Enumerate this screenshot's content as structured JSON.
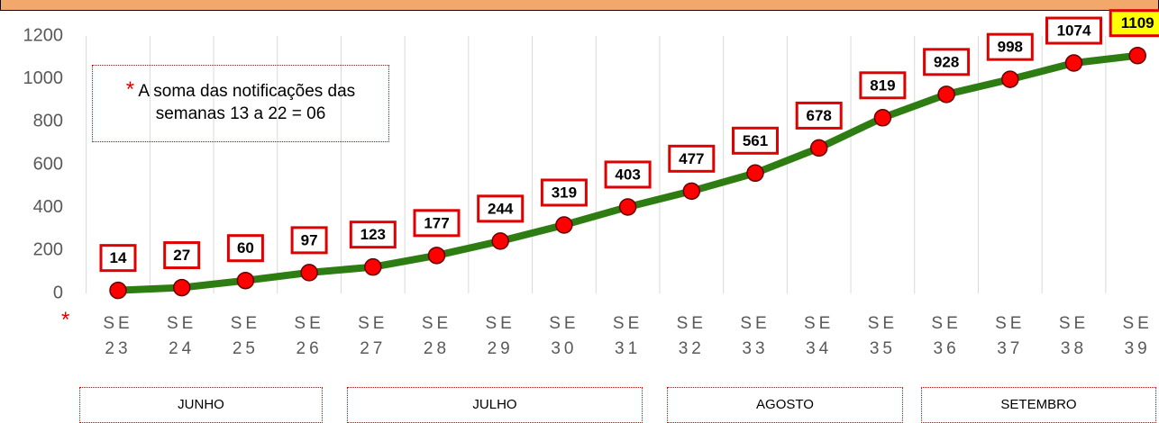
{
  "chart_data": {
    "type": "line",
    "categories": [
      "SE\n23",
      "SE\n24",
      "SE\n25",
      "SE\n26",
      "SE\n27",
      "SE\n28",
      "SE\n29",
      "SE\n30",
      "SE\n31",
      "SE\n32",
      "SE\n33",
      "SE\n34",
      "SE\n35",
      "SE\n36",
      "SE\n37",
      "SE\n38",
      "SE\n39"
    ],
    "series": [
      {
        "color": "#2e7d12",
        "marker_color": "#ff0000",
        "values": [
          14,
          27,
          60,
          97,
          123,
          177,
          244,
          319,
          403,
          477,
          561,
          678,
          819,
          928,
          998,
          1074,
          1109
        ]
      }
    ],
    "ylim": [
      0,
      1200
    ],
    "yticks": [
      0,
      200,
      400,
      600,
      800,
      1000,
      1200
    ],
    "grid": "vertical",
    "label_border_color": "#e00000",
    "highlight_last_color": "#ffff00",
    "annotation_marker": "*",
    "annotation": "A soma das notificações  das semanas 13 a 22 = 06",
    "axis_marker": "*",
    "months": [
      "JUNHO",
      "JULHO",
      "AGOSTO",
      "SETEMBRO"
    ]
  }
}
